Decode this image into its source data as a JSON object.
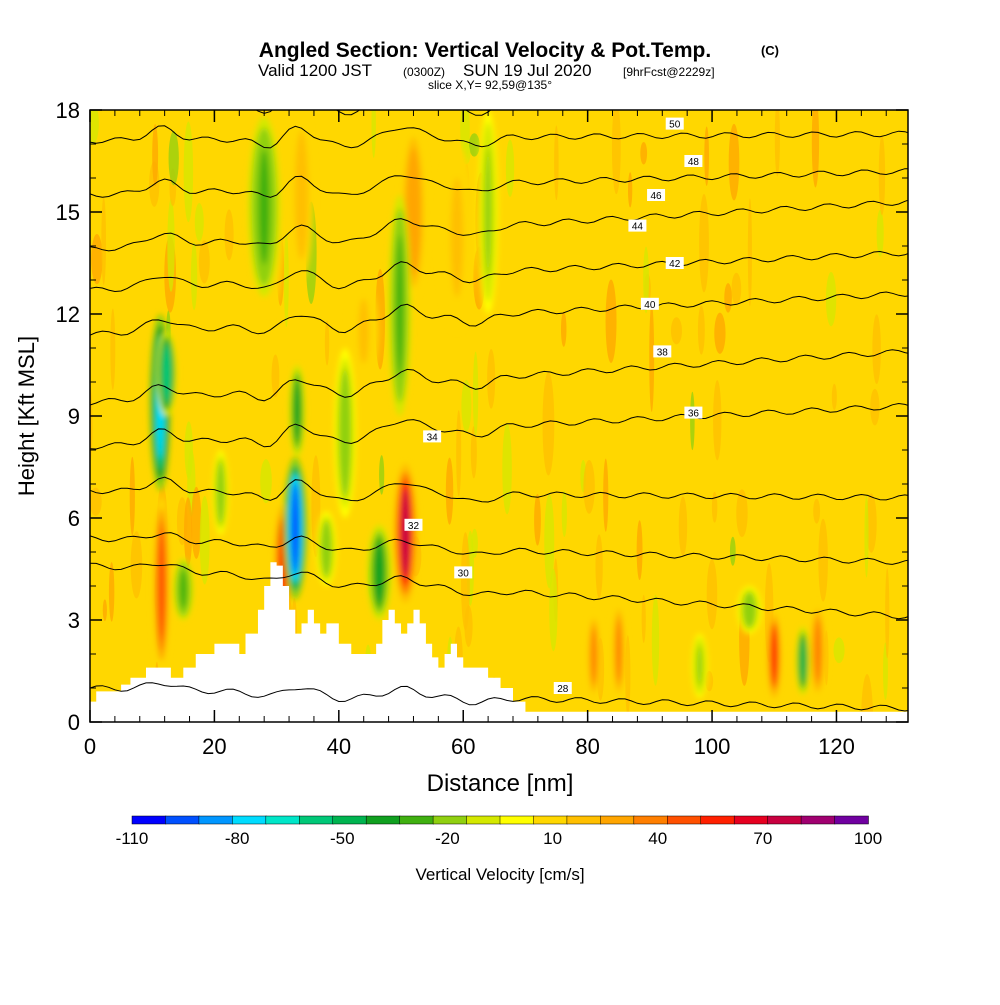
{
  "header": {
    "title": "Angled Section: Vertical Velocity & Pot.Temp.",
    "title_unit": "(C)",
    "valid_prefix": "Valid 1200 JST",
    "valid_utc": "(0300Z)",
    "valid_date": "SUN 19 Jul 2020",
    "forecast": "[9hrFcst@2229z]",
    "slice": "slice X,Y= 92,59@135°"
  },
  "chart_data": {
    "type": "heatmap",
    "xlabel": "Distance [nm]",
    "ylabel": "Height [Kft MSL]",
    "xlim": [
      0,
      131.5
    ],
    "ylim": [
      0,
      18
    ],
    "xticks": [
      "0",
      "20",
      "40",
      "60",
      "80",
      "100",
      "120"
    ],
    "yticks": [
      "0",
      "3",
      "6",
      "9",
      "12",
      "15",
      "18"
    ],
    "background_field_cms": 5,
    "terrain_kft": [
      [
        0,
        0.6
      ],
      [
        1,
        0.9
      ],
      [
        5,
        1.1
      ],
      [
        6.5,
        1.3
      ],
      [
        9,
        1.6
      ],
      [
        13,
        1.3
      ],
      [
        15,
        1.6
      ],
      [
        17,
        2
      ],
      [
        20,
        2.3
      ],
      [
        23,
        2.3
      ],
      [
        24,
        2
      ],
      [
        25,
        2.6
      ],
      [
        27,
        3.3
      ],
      [
        28,
        4
      ],
      [
        29,
        4.7
      ],
      [
        30,
        4.6
      ],
      [
        31,
        4
      ],
      [
        32,
        3.3
      ],
      [
        33,
        2.6
      ],
      [
        34,
        2.9
      ],
      [
        35,
        3.3
      ],
      [
        36,
        2.9
      ],
      [
        37,
        2.6
      ],
      [
        38,
        2.9
      ],
      [
        40,
        2.3
      ],
      [
        42,
        2
      ],
      [
        45,
        2
      ],
      [
        46,
        2.3
      ],
      [
        47,
        3
      ],
      [
        48,
        3.3
      ],
      [
        49,
        2.9
      ],
      [
        50,
        2.6
      ],
      [
        51,
        2.9
      ],
      [
        52,
        3.3
      ],
      [
        53,
        2.9
      ],
      [
        54,
        2.3
      ],
      [
        55,
        1.9
      ],
      [
        56,
        1.6
      ],
      [
        57,
        2
      ],
      [
        58,
        2.3
      ],
      [
        59,
        1.9
      ],
      [
        60,
        1.6
      ],
      [
        62,
        1.6
      ],
      [
        64,
        1.3
      ],
      [
        66,
        1
      ],
      [
        68,
        0.6
      ],
      [
        70,
        0.3
      ],
      [
        72,
        0.3
      ],
      [
        131.5,
        0.3
      ]
    ],
    "updraft_cores": [
      {
        "x": 11.5,
        "y0": 1.5,
        "y1": 6.6,
        "w": 0.9,
        "v": 45
      },
      {
        "x": 31,
        "y0": 3,
        "y1": 6.4,
        "w": 0.9,
        "v": 55
      },
      {
        "x": 50.7,
        "y0": 3.5,
        "y1": 7.6,
        "w": 1.2,
        "v": 75
      },
      {
        "x": 52,
        "y0": 12.5,
        "y1": 17.5,
        "w": 1.3,
        "v": 30
      },
      {
        "x": 59,
        "y0": 11.5,
        "y1": 17,
        "w": 1.8,
        "v": 15
      },
      {
        "x": 29,
        "y0": 12,
        "y1": 18,
        "w": 1.4,
        "v": 20
      },
      {
        "x": 81,
        "y0": 0.7,
        "y1": 3.2,
        "w": 0.7,
        "v": 40
      },
      {
        "x": 85,
        "y0": 0.7,
        "y1": 3.5,
        "w": 0.7,
        "v": 40
      },
      {
        "x": 110,
        "y0": 0.7,
        "y1": 3.2,
        "w": 0.7,
        "v": 55
      },
      {
        "x": 117,
        "y0": 0.7,
        "y1": 3.5,
        "w": 0.9,
        "v": 40
      },
      {
        "x": 34,
        "y0": 13,
        "y1": 18,
        "w": 1.2,
        "v": 20
      },
      {
        "x": 44,
        "y0": 10,
        "y1": 13,
        "w": 1.5,
        "v": 15
      }
    ],
    "downdraft_cores": [
      {
        "x": 11.3,
        "y0": 6.8,
        "y1": 12,
        "w": 1.1,
        "v": -75
      },
      {
        "x": 12.3,
        "y0": 9,
        "y1": 11.5,
        "w": 1.0,
        "v": -55
      },
      {
        "x": 33,
        "y0": 3.6,
        "y1": 7.8,
        "w": 1.2,
        "v": -95
      },
      {
        "x": 33.3,
        "y0": 7.8,
        "y1": 10.5,
        "w": 0.8,
        "v": -40
      },
      {
        "x": 28,
        "y0": 12.5,
        "y1": 17.8,
        "w": 1.6,
        "v": -30
      },
      {
        "x": 49.8,
        "y0": 9,
        "y1": 15.5,
        "w": 1.1,
        "v": -30
      },
      {
        "x": 46.5,
        "y0": 3,
        "y1": 5.8,
        "w": 1.2,
        "v": -40
      },
      {
        "x": 15,
        "y0": 3,
        "y1": 4.8,
        "w": 1.0,
        "v": -30
      },
      {
        "x": 38,
        "y0": 4,
        "y1": 6.2,
        "w": 1.0,
        "v": -20
      },
      {
        "x": 41,
        "y0": 6,
        "y1": 11,
        "w": 1.1,
        "v": -22
      },
      {
        "x": 21,
        "y0": 5.5,
        "y1": 8,
        "w": 0.8,
        "v": -22
      },
      {
        "x": 64,
        "y0": 12,
        "y1": 18,
        "w": 1.0,
        "v": -15
      },
      {
        "x": 114.6,
        "y0": 0.8,
        "y1": 2.8,
        "w": 0.7,
        "v": -45
      },
      {
        "x": 106,
        "y0": 2.6,
        "y1": 4,
        "w": 1.2,
        "v": -20
      },
      {
        "x": 98,
        "y0": 0.7,
        "y1": 2.6,
        "w": 0.8,
        "v": -15
      }
    ],
    "theta_levels": [
      {
        "t": 28,
        "y_left": 1.0,
        "y_right": 0.4,
        "label_x": 76,
        "label_y": 1.0
      },
      {
        "t": 30,
        "y_left": 4.6,
        "y_right": 3.1,
        "label_x": 60,
        "label_y": 4.4
      },
      {
        "t": 32,
        "y_left": 5.4,
        "y_right": 4.7,
        "label_x": 52,
        "label_y": 5.8
      },
      {
        "t": 34,
        "y_left": 6.8,
        "y_right": 6.6,
        "label_x": 55,
        "label_y": 8.4
      },
      {
        "t": 36,
        "y_left": 8.1,
        "y_right": 9.3,
        "label_x": 97,
        "label_y": 9.1
      },
      {
        "t": 38,
        "y_left": 9.4,
        "y_right": 10.9,
        "label_x": 92,
        "label_y": 10.9
      },
      {
        "t": 40,
        "y_left": 11.4,
        "y_right": 12.6,
        "label_x": 90,
        "label_y": 12.3
      },
      {
        "t": 42,
        "y_left": 12.7,
        "y_right": 13.8,
        "label_x": 94,
        "label_y": 13.5
      },
      {
        "t": 44,
        "y_left": 13.9,
        "y_right": 15.3,
        "label_x": 88,
        "label_y": 14.6
      },
      {
        "t": 46,
        "y_left": 15.5,
        "y_right": 16.2,
        "label_x": 91,
        "label_y": 15.5
      },
      {
        "t": 48,
        "y_left": 17.1,
        "y_right": 17.3,
        "label_x": 97,
        "label_y": 16.5
      },
      {
        "t": 50,
        "y_left": 18.2,
        "y_right": 18.1,
        "label_x": 94,
        "label_y": 17.6
      }
    ],
    "theta_label_texts": [
      "28",
      "30",
      "32",
      "34",
      "36",
      "38",
      "40",
      "42",
      "44",
      "46",
      "48",
      "50"
    ],
    "colorbar": {
      "label": "Vertical Velocity [cm/s]",
      "min": -110,
      "max": 100,
      "tick_labels": [
        "-110",
        "-80",
        "-50",
        "-20",
        "10",
        "40",
        "70",
        "100"
      ],
      "colors": [
        "#0000ff",
        "#0050ff",
        "#0096ff",
        "#00dcff",
        "#00e6c8",
        "#00c878",
        "#00b450",
        "#10a020",
        "#40b010",
        "#90d010",
        "#d4e800",
        "#ffff00",
        "#ffd700",
        "#ffbf00",
        "#ffa500",
        "#ff7f00",
        "#ff5000",
        "#ff2000",
        "#e60020",
        "#c80040",
        "#a00070",
        "#7000a0"
      ]
    }
  }
}
